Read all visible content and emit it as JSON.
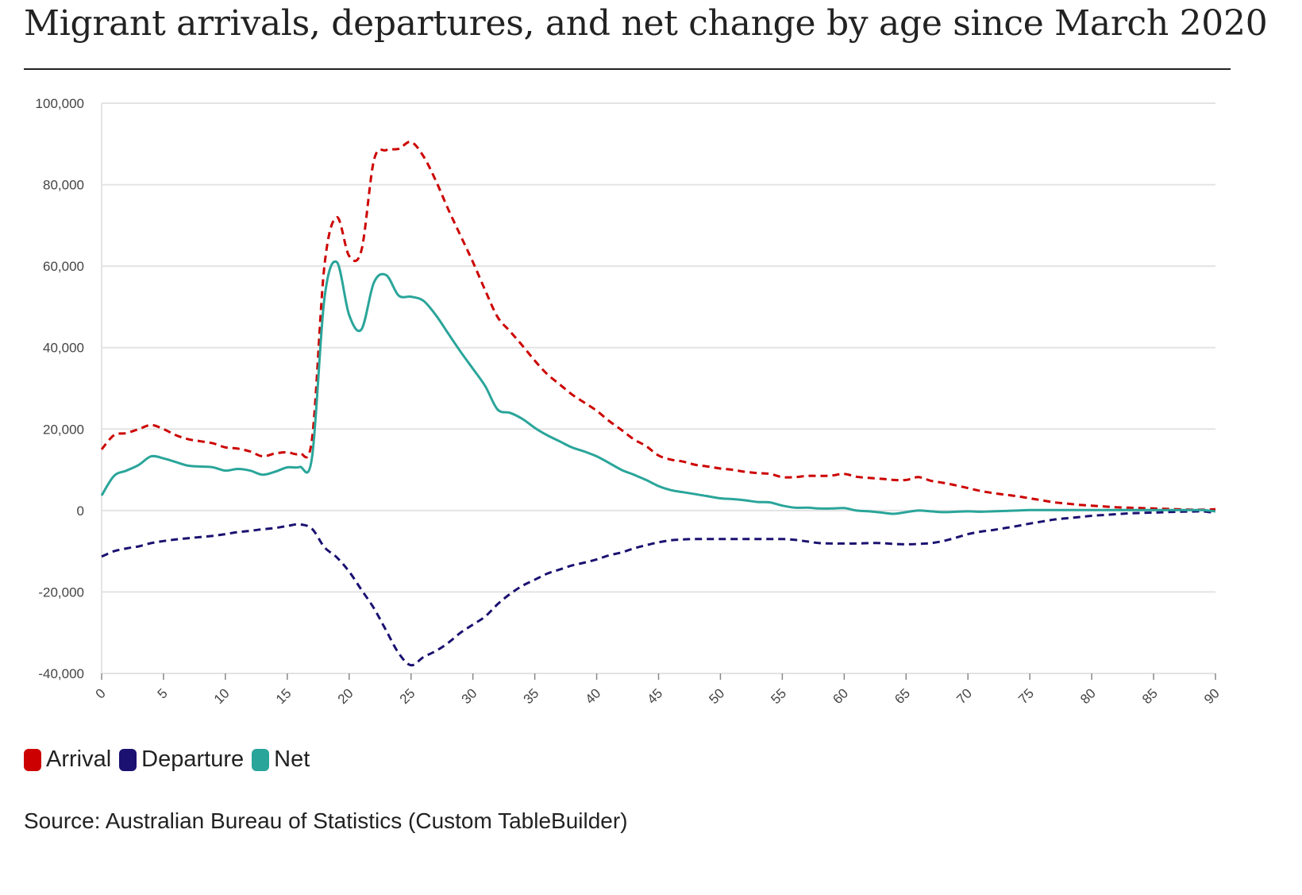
{
  "chart_data": {
    "type": "line",
    "title": "Migrant arrivals, departures, and net change by age since March 2020",
    "xlabel": "",
    "ylabel": "",
    "xlim": [
      0,
      90
    ],
    "ylim": [
      -40000,
      100000
    ],
    "grid": true,
    "legend_position": "bottom-left",
    "x_ticks": [
      "0",
      "5",
      "10",
      "15",
      "20",
      "25",
      "30",
      "35",
      "40",
      "45",
      "50",
      "55",
      "60",
      "65",
      "70",
      "75",
      "80",
      "85",
      "90"
    ],
    "y_ticks": [
      "-40,000",
      "-20,000",
      "0",
      "20,000",
      "40,000",
      "60,000",
      "80,000",
      "100,000"
    ],
    "y_tick_values": [
      -40000,
      -20000,
      0,
      20000,
      40000,
      60000,
      80000,
      100000
    ],
    "x": [
      0,
      1,
      2,
      3,
      4,
      5,
      6,
      7,
      8,
      9,
      10,
      11,
      12,
      13,
      14,
      15,
      16,
      17,
      18,
      19,
      20,
      21,
      22,
      23,
      24,
      25,
      26,
      27,
      28,
      29,
      30,
      31,
      32,
      33,
      34,
      35,
      36,
      37,
      38,
      39,
      40,
      41,
      42,
      43,
      44,
      45,
      46,
      47,
      48,
      49,
      50,
      51,
      52,
      53,
      54,
      55,
      56,
      57,
      58,
      59,
      60,
      61,
      62,
      63,
      64,
      65,
      66,
      67,
      68,
      69,
      70,
      71,
      72,
      73,
      74,
      75,
      76,
      77,
      78,
      79,
      80,
      81,
      82,
      83,
      84,
      85,
      86,
      87,
      88,
      89,
      90
    ],
    "series": [
      {
        "name": "Arrival",
        "color": "#cc0000",
        "dash": "dashed",
        "values": [
          15000,
          18500,
          19000,
          20000,
          21000,
          20000,
          18500,
          17500,
          17000,
          16500,
          15500,
          15200,
          14500,
          13300,
          14000,
          14300,
          14000,
          17500,
          60000,
          72000,
          62500,
          64000,
          86000,
          88500,
          88800,
          90500,
          87000,
          81000,
          74000,
          67500,
          61000,
          54000,
          47500,
          44000,
          40500,
          36800,
          33500,
          31000,
          28500,
          26500,
          24500,
          22000,
          19800,
          17500,
          15800,
          13500,
          12500,
          12000,
          11200,
          10800,
          10300,
          10000,
          9500,
          9200,
          9000,
          8200,
          8200,
          8500,
          8500,
          8600,
          9000,
          8300,
          8000,
          7800,
          7500,
          7500,
          8200,
          7300,
          6800,
          6200,
          5500,
          4800,
          4300,
          3900,
          3500,
          3000,
          2500,
          2000,
          1700,
          1400,
          1200,
          1000,
          800,
          700,
          600,
          500,
          400,
          300,
          200,
          200,
          300
        ]
      },
      {
        "name": "Departure",
        "color": "#1a1170",
        "dash": "dashed",
        "values": [
          -11300,
          -10000,
          -9300,
          -8800,
          -8000,
          -7500,
          -7100,
          -6800,
          -6500,
          -6200,
          -5800,
          -5300,
          -5000,
          -4600,
          -4300,
          -3800,
          -3400,
          -4500,
          -9000,
          -11500,
          -15000,
          -19500,
          -24000,
          -29500,
          -35000,
          -38000,
          -36000,
          -34500,
          -32500,
          -30000,
          -28000,
          -26000,
          -23000,
          -20500,
          -18500,
          -17000,
          -15500,
          -14500,
          -13500,
          -12800,
          -12000,
          -11000,
          -10300,
          -9300,
          -8500,
          -7800,
          -7300,
          -7100,
          -7000,
          -7000,
          -7000,
          -7000,
          -7000,
          -7000,
          -7000,
          -7000,
          -7200,
          -7600,
          -8000,
          -8100,
          -8100,
          -8100,
          -8000,
          -8000,
          -8200,
          -8300,
          -8200,
          -8000,
          -7500,
          -6700,
          -5800,
          -5200,
          -4800,
          -4300,
          -3800,
          -3200,
          -2700,
          -2200,
          -1900,
          -1600,
          -1300,
          -1100,
          -900,
          -700,
          -600,
          -500,
          -400,
          -300,
          -250,
          -200,
          -600
        ]
      },
      {
        "name": "Net",
        "color": "#2aa59a",
        "dash": "solid",
        "values": [
          3700,
          8500,
          9800,
          11200,
          13300,
          12800,
          11900,
          11000,
          10800,
          10600,
          9800,
          10200,
          9800,
          8800,
          9500,
          10600,
          10700,
          13000,
          52000,
          61000,
          48000,
          44500,
          56000,
          57800,
          52800,
          52500,
          51500,
          48000,
          43500,
          39000,
          34800,
          30500,
          24800,
          24000,
          22500,
          20300,
          18500,
          17000,
          15500,
          14500,
          13300,
          11700,
          10000,
          8800,
          7500,
          6000,
          5000,
          4500,
          4000,
          3500,
          3000,
          2800,
          2500,
          2100,
          2000,
          1200,
          700,
          700,
          500,
          500,
          600,
          0,
          -200,
          -500,
          -800,
          -400,
          0,
          -200,
          -400,
          -300,
          -200,
          -300,
          -200,
          -100,
          0,
          100,
          100,
          100,
          100,
          100,
          100,
          100,
          100,
          100,
          100,
          100,
          100,
          100,
          100,
          100,
          -200
        ]
      }
    ]
  },
  "legend": {
    "items": [
      {
        "label": "Arrival",
        "color": "#cc0000"
      },
      {
        "label": "Departure",
        "color": "#1a1170"
      },
      {
        "label": "Net",
        "color": "#2aa59a"
      }
    ]
  },
  "source": "Source: Australian Bureau of Statistics (Custom TableBuilder)"
}
